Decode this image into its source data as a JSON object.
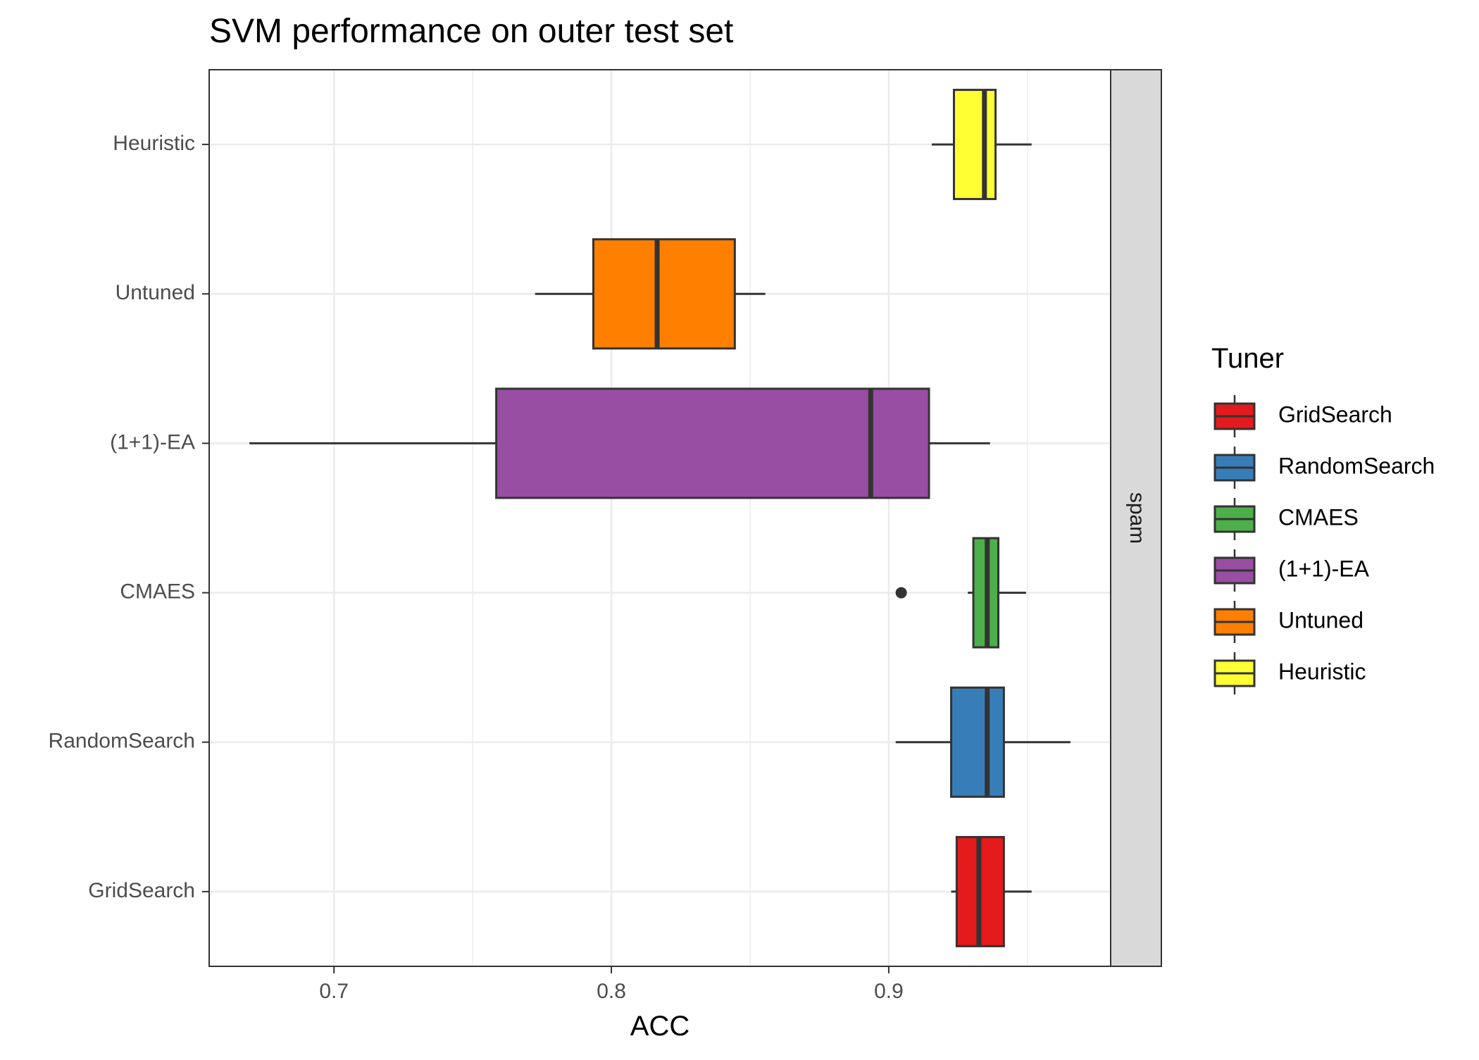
{
  "chart_data": {
    "type": "boxplot",
    "title": "SVM performance on outer test set",
    "xlabel": "ACC",
    "ylabel": "",
    "facet_label": "spam",
    "xlim": [
      0.655,
      0.98
    ],
    "x_ticks": [
      0.7,
      0.8,
      0.9
    ],
    "x_tick_labels": [
      "0.7",
      "0.8",
      "0.9"
    ],
    "grid": true,
    "legend": {
      "title": "Tuner",
      "position": "right",
      "entries": [
        "GridSearch",
        "RandomSearch",
        "CMAES",
        "(1+1)-EA",
        "Untuned",
        "Heuristic"
      ]
    },
    "categories": [
      "GridSearch",
      "RandomSearch",
      "CMAES",
      "(1+1)-EA",
      "Untuned",
      "Heuristic"
    ],
    "series": [
      {
        "name": "GridSearch",
        "color": "#E41A1C",
        "whisker_low": 0.9225,
        "q1": 0.9245,
        "median": 0.9325,
        "q3": 0.9415,
        "whisker_high": 0.9515,
        "outliers": []
      },
      {
        "name": "RandomSearch",
        "color": "#377EB8",
        "whisker_low": 0.9025,
        "q1": 0.9225,
        "median": 0.9355,
        "q3": 0.9415,
        "whisker_high": 0.9655,
        "outliers": []
      },
      {
        "name": "CMAES",
        "color": "#4DAF4A",
        "whisker_low": 0.9285,
        "q1": 0.9305,
        "median": 0.9355,
        "q3": 0.9395,
        "whisker_high": 0.9495,
        "outliers": [
          0.9045
        ]
      },
      {
        "name": "(1+1)-EA",
        "color": "#984EA3",
        "whisker_low": 0.6695,
        "q1": 0.7585,
        "median": 0.8935,
        "q3": 0.9145,
        "whisker_high": 0.9365,
        "outliers": []
      },
      {
        "name": "Untuned",
        "color": "#FF7F00",
        "whisker_low": 0.7725,
        "q1": 0.7935,
        "median": 0.8165,
        "q3": 0.8445,
        "whisker_high": 0.8555,
        "outliers": []
      },
      {
        "name": "Heuristic",
        "color": "#FFFF33",
        "whisker_low": 0.9155,
        "q1": 0.9235,
        "median": 0.9345,
        "q3": 0.9385,
        "whisker_high": 0.9515,
        "outliers": []
      }
    ]
  }
}
